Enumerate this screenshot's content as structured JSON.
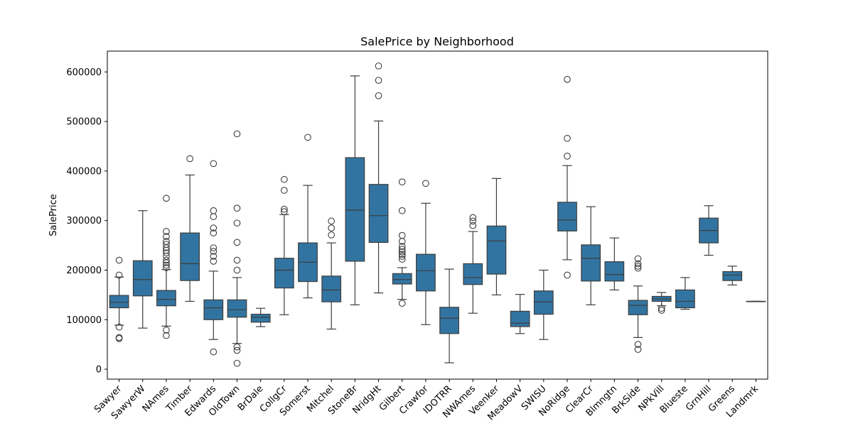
{
  "chart_data": {
    "type": "box",
    "title": "SalePrice by Neighborhood",
    "xlabel": "",
    "ylabel": "SalePrice",
    "ylim": [
      -20000,
      642000
    ],
    "yticks": [
      0,
      100000,
      200000,
      300000,
      400000,
      500000,
      600000
    ],
    "grid": false,
    "legend": null,
    "box_color": "#3274a1",
    "line_color": "#3d3d3d",
    "categories": [
      "Sawyer",
      "SawyerW",
      "NAmes",
      "Timber",
      "Edwards",
      "OldTown",
      "BrDale",
      "CollgCr",
      "Somerst",
      "Mitchel",
      "StoneBr",
      "NridgHt",
      "Gilbert",
      "Crawfor",
      "IDOTRR",
      "NWAmes",
      "Veenker",
      "MeadowV",
      "SWISU",
      "NoRidge",
      "ClearCr",
      "Blmngtn",
      "BrkSide",
      "NPkVill",
      "Blueste",
      "GrnHill",
      "Greens",
      "Landmrk"
    ],
    "boxes": [
      {
        "category": "Sawyer",
        "whislo": 89000,
        "q1": 124000,
        "med": 135000,
        "q3": 149000,
        "whishi": 186000,
        "fliers": [
          62000,
          64000,
          85000,
          190000,
          220000
        ]
      },
      {
        "category": "SawyerW",
        "whislo": 83000,
        "q1": 148000,
        "med": 181000,
        "q3": 219000,
        "whishi": 320000,
        "fliers": []
      },
      {
        "category": "NAmes",
        "whislo": 87000,
        "q1": 128000,
        "med": 141000,
        "q3": 159000,
        "whishi": 201000,
        "fliers": [
          68000,
          79000,
          205000,
          210000,
          215000,
          220000,
          228000,
          235000,
          240000,
          245000,
          252000,
          258000,
          268000,
          278000,
          345000
        ]
      },
      {
        "category": "Timber",
        "whislo": 137000,
        "q1": 179000,
        "med": 213000,
        "q3": 275000,
        "whishi": 392000,
        "fliers": [
          425000
        ]
      },
      {
        "category": "Edwards",
        "whislo": 60000,
        "q1": 100000,
        "med": 124000,
        "q3": 140000,
        "whishi": 198000,
        "fliers": [
          35000,
          218000,
          228000,
          238000,
          245000,
          275000,
          285000,
          308000,
          320000,
          415000
        ]
      },
      {
        "category": "OldTown",
        "whislo": 52000,
        "q1": 105000,
        "med": 120000,
        "q3": 140000,
        "whishi": 185000,
        "fliers": [
          12000,
          38000,
          45000,
          200000,
          220000,
          256000,
          295000,
          325000,
          475000
        ]
      },
      {
        "category": "BrDale",
        "whislo": 86000,
        "q1": 95000,
        "med": 105000,
        "q3": 111000,
        "whishi": 123000,
        "fliers": []
      },
      {
        "category": "CollgCr",
        "whislo": 110000,
        "q1": 164000,
        "med": 200000,
        "q3": 224000,
        "whishi": 312000,
        "fliers": [
          318000,
          323000,
          361000,
          383000
        ]
      },
      {
        "category": "Somerst",
        "whislo": 144000,
        "q1": 177000,
        "med": 216000,
        "q3": 255000,
        "whishi": 371000,
        "fliers": [
          468000
        ]
      },
      {
        "category": "Mitchel",
        "whislo": 81000,
        "q1": 136000,
        "med": 160000,
        "q3": 188000,
        "whishi": 255000,
        "fliers": [
          271000,
          285000,
          299000
        ]
      },
      {
        "category": "StoneBr",
        "whislo": 130000,
        "q1": 218000,
        "med": 321000,
        "q3": 427000,
        "whishi": 592000,
        "fliers": []
      },
      {
        "category": "NridgHt",
        "whislo": 154000,
        "q1": 256000,
        "med": 310000,
        "q3": 373000,
        "whishi": 501000,
        "fliers": [
          552000,
          583000,
          612000
        ]
      },
      {
        "category": "Gilbert",
        "whislo": 141000,
        "q1": 172000,
        "med": 181000,
        "q3": 193000,
        "whishi": 205000,
        "fliers": [
          133000,
          222000,
          228000,
          232000,
          237000,
          242000,
          248000,
          258000,
          270000,
          320000,
          378000
        ]
      },
      {
        "category": "Crawfor",
        "whislo": 90000,
        "q1": 158000,
        "med": 199000,
        "q3": 232000,
        "whishi": 335000,
        "fliers": [
          375000
        ]
      },
      {
        "category": "IDOTRR",
        "whislo": 13000,
        "q1": 72000,
        "med": 103000,
        "q3": 125000,
        "whishi": 202000,
        "fliers": []
      },
      {
        "category": "NWAmes",
        "whislo": 113000,
        "q1": 171000,
        "med": 185000,
        "q3": 213000,
        "whishi": 278000,
        "fliers": [
          290000,
          299000,
          306000
        ]
      },
      {
        "category": "Veenker",
        "whislo": 150000,
        "q1": 192000,
        "med": 259000,
        "q3": 289000,
        "whishi": 385000,
        "fliers": []
      },
      {
        "category": "MeadowV",
        "whislo": 72000,
        "q1": 86000,
        "med": 93000,
        "q3": 117000,
        "whishi": 151000,
        "fliers": []
      },
      {
        "category": "SWISU",
        "whislo": 60000,
        "q1": 111000,
        "med": 136000,
        "q3": 158000,
        "whishi": 200000,
        "fliers": []
      },
      {
        "category": "NoRidge",
        "whislo": 221000,
        "q1": 279000,
        "med": 301000,
        "q3": 337000,
        "whishi": 411000,
        "fliers": [
          190000,
          430000,
          466000,
          585000
        ]
      },
      {
        "category": "ClearCr",
        "whislo": 130000,
        "q1": 178000,
        "med": 224000,
        "q3": 251000,
        "whishi": 328000,
        "fliers": []
      },
      {
        "category": "Blmngtn",
        "whislo": 160000,
        "q1": 178000,
        "med": 191000,
        "q3": 217000,
        "whishi": 265000,
        "fliers": []
      },
      {
        "category": "BrkSide",
        "whislo": 64000,
        "q1": 110000,
        "med": 129000,
        "q3": 139000,
        "whishi": 168000,
        "fliers": [
          40000,
          50000,
          204000,
          208000,
          213000,
          223000
        ]
      },
      {
        "category": "NPkVill",
        "whislo": 128000,
        "q1": 137000,
        "med": 142000,
        "q3": 147000,
        "whishi": 155000,
        "fliers": [
          119000,
          123000
        ]
      },
      {
        "category": "Blueste",
        "whislo": 121000,
        "q1": 124000,
        "med": 137000,
        "q3": 160000,
        "whishi": 185000,
        "fliers": []
      },
      {
        "category": "GrnHill",
        "whislo": 230000,
        "q1": 255000,
        "med": 280000,
        "q3": 305000,
        "whishi": 330000,
        "fliers": []
      },
      {
        "category": "Greens",
        "whislo": 170000,
        "q1": 179000,
        "med": 190000,
        "q3": 197000,
        "whishi": 208000,
        "fliers": []
      },
      {
        "category": "Landmrk",
        "whislo": 137000,
        "q1": 137000,
        "med": 137000,
        "q3": 137000,
        "whishi": 137000,
        "fliers": []
      }
    ]
  }
}
